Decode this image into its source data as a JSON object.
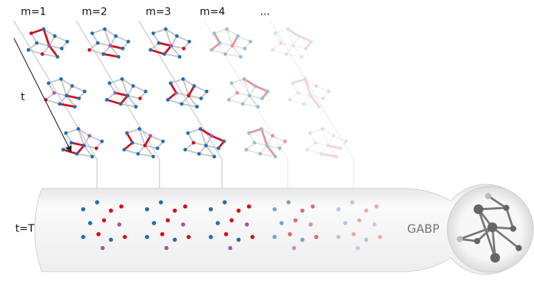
{
  "columns": [
    "m=1",
    "m=2",
    "m=3",
    "m=4",
    "..."
  ],
  "labels": {
    "time": "t",
    "final": "t=T"
  },
  "output": "GABP"
}
